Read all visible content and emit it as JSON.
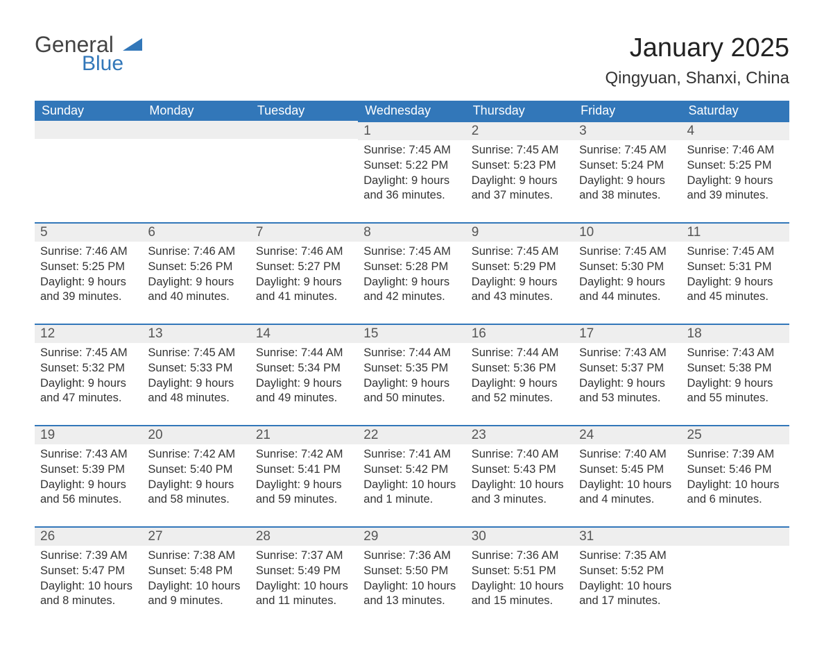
{
  "logo": {
    "part1": "General",
    "part2": "Blue"
  },
  "title": "January 2025",
  "subtitle": "Qingyuan, Shanxi, China",
  "headers": [
    "Sunday",
    "Monday",
    "Tuesday",
    "Wednesday",
    "Thursday",
    "Friday",
    "Saturday"
  ],
  "colors": {
    "header_bg": "#3277b9",
    "header_text": "#ffffff",
    "daynum_bg": "#eeeeee",
    "daynum_border": "#3277b9",
    "text": "#333333",
    "logo_blue": "#3277b9"
  },
  "typography": {
    "title_fontsize": 38,
    "subtitle_fontsize": 24,
    "header_fontsize": 18,
    "daynum_fontsize": 19,
    "body_fontsize": 16.5
  },
  "weeks": [
    [
      null,
      null,
      null,
      {
        "n": "1",
        "sr": "Sunrise: 7:45 AM",
        "ss": "Sunset: 5:22 PM",
        "d1": "Daylight: 9 hours",
        "d2": "and 36 minutes."
      },
      {
        "n": "2",
        "sr": "Sunrise: 7:45 AM",
        "ss": "Sunset: 5:23 PM",
        "d1": "Daylight: 9 hours",
        "d2": "and 37 minutes."
      },
      {
        "n": "3",
        "sr": "Sunrise: 7:45 AM",
        "ss": "Sunset: 5:24 PM",
        "d1": "Daylight: 9 hours",
        "d2": "and 38 minutes."
      },
      {
        "n": "4",
        "sr": "Sunrise: 7:46 AM",
        "ss": "Sunset: 5:25 PM",
        "d1": "Daylight: 9 hours",
        "d2": "and 39 minutes."
      }
    ],
    [
      {
        "n": "5",
        "sr": "Sunrise: 7:46 AM",
        "ss": "Sunset: 5:25 PM",
        "d1": "Daylight: 9 hours",
        "d2": "and 39 minutes."
      },
      {
        "n": "6",
        "sr": "Sunrise: 7:46 AM",
        "ss": "Sunset: 5:26 PM",
        "d1": "Daylight: 9 hours",
        "d2": "and 40 minutes."
      },
      {
        "n": "7",
        "sr": "Sunrise: 7:46 AM",
        "ss": "Sunset: 5:27 PM",
        "d1": "Daylight: 9 hours",
        "d2": "and 41 minutes."
      },
      {
        "n": "8",
        "sr": "Sunrise: 7:45 AM",
        "ss": "Sunset: 5:28 PM",
        "d1": "Daylight: 9 hours",
        "d2": "and 42 minutes."
      },
      {
        "n": "9",
        "sr": "Sunrise: 7:45 AM",
        "ss": "Sunset: 5:29 PM",
        "d1": "Daylight: 9 hours",
        "d2": "and 43 minutes."
      },
      {
        "n": "10",
        "sr": "Sunrise: 7:45 AM",
        "ss": "Sunset: 5:30 PM",
        "d1": "Daylight: 9 hours",
        "d2": "and 44 minutes."
      },
      {
        "n": "11",
        "sr": "Sunrise: 7:45 AM",
        "ss": "Sunset: 5:31 PM",
        "d1": "Daylight: 9 hours",
        "d2": "and 45 minutes."
      }
    ],
    [
      {
        "n": "12",
        "sr": "Sunrise: 7:45 AM",
        "ss": "Sunset: 5:32 PM",
        "d1": "Daylight: 9 hours",
        "d2": "and 47 minutes."
      },
      {
        "n": "13",
        "sr": "Sunrise: 7:45 AM",
        "ss": "Sunset: 5:33 PM",
        "d1": "Daylight: 9 hours",
        "d2": "and 48 minutes."
      },
      {
        "n": "14",
        "sr": "Sunrise: 7:44 AM",
        "ss": "Sunset: 5:34 PM",
        "d1": "Daylight: 9 hours",
        "d2": "and 49 minutes."
      },
      {
        "n": "15",
        "sr": "Sunrise: 7:44 AM",
        "ss": "Sunset: 5:35 PM",
        "d1": "Daylight: 9 hours",
        "d2": "and 50 minutes."
      },
      {
        "n": "16",
        "sr": "Sunrise: 7:44 AM",
        "ss": "Sunset: 5:36 PM",
        "d1": "Daylight: 9 hours",
        "d2": "and 52 minutes."
      },
      {
        "n": "17",
        "sr": "Sunrise: 7:43 AM",
        "ss": "Sunset: 5:37 PM",
        "d1": "Daylight: 9 hours",
        "d2": "and 53 minutes."
      },
      {
        "n": "18",
        "sr": "Sunrise: 7:43 AM",
        "ss": "Sunset: 5:38 PM",
        "d1": "Daylight: 9 hours",
        "d2": "and 55 minutes."
      }
    ],
    [
      {
        "n": "19",
        "sr": "Sunrise: 7:43 AM",
        "ss": "Sunset: 5:39 PM",
        "d1": "Daylight: 9 hours",
        "d2": "and 56 minutes."
      },
      {
        "n": "20",
        "sr": "Sunrise: 7:42 AM",
        "ss": "Sunset: 5:40 PM",
        "d1": "Daylight: 9 hours",
        "d2": "and 58 minutes."
      },
      {
        "n": "21",
        "sr": "Sunrise: 7:42 AM",
        "ss": "Sunset: 5:41 PM",
        "d1": "Daylight: 9 hours",
        "d2": "and 59 minutes."
      },
      {
        "n": "22",
        "sr": "Sunrise: 7:41 AM",
        "ss": "Sunset: 5:42 PM",
        "d1": "Daylight: 10 hours",
        "d2": "and 1 minute."
      },
      {
        "n": "23",
        "sr": "Sunrise: 7:40 AM",
        "ss": "Sunset: 5:43 PM",
        "d1": "Daylight: 10 hours",
        "d2": "and 3 minutes."
      },
      {
        "n": "24",
        "sr": "Sunrise: 7:40 AM",
        "ss": "Sunset: 5:45 PM",
        "d1": "Daylight: 10 hours",
        "d2": "and 4 minutes."
      },
      {
        "n": "25",
        "sr": "Sunrise: 7:39 AM",
        "ss": "Sunset: 5:46 PM",
        "d1": "Daylight: 10 hours",
        "d2": "and 6 minutes."
      }
    ],
    [
      {
        "n": "26",
        "sr": "Sunrise: 7:39 AM",
        "ss": "Sunset: 5:47 PM",
        "d1": "Daylight: 10 hours",
        "d2": "and 8 minutes."
      },
      {
        "n": "27",
        "sr": "Sunrise: 7:38 AM",
        "ss": "Sunset: 5:48 PM",
        "d1": "Daylight: 10 hours",
        "d2": "and 9 minutes."
      },
      {
        "n": "28",
        "sr": "Sunrise: 7:37 AM",
        "ss": "Sunset: 5:49 PM",
        "d1": "Daylight: 10 hours",
        "d2": "and 11 minutes."
      },
      {
        "n": "29",
        "sr": "Sunrise: 7:36 AM",
        "ss": "Sunset: 5:50 PM",
        "d1": "Daylight: 10 hours",
        "d2": "and 13 minutes."
      },
      {
        "n": "30",
        "sr": "Sunrise: 7:36 AM",
        "ss": "Sunset: 5:51 PM",
        "d1": "Daylight: 10 hours",
        "d2": "and 15 minutes."
      },
      {
        "n": "31",
        "sr": "Sunrise: 7:35 AM",
        "ss": "Sunset: 5:52 PM",
        "d1": "Daylight: 10 hours",
        "d2": "and 17 minutes."
      },
      null
    ]
  ]
}
